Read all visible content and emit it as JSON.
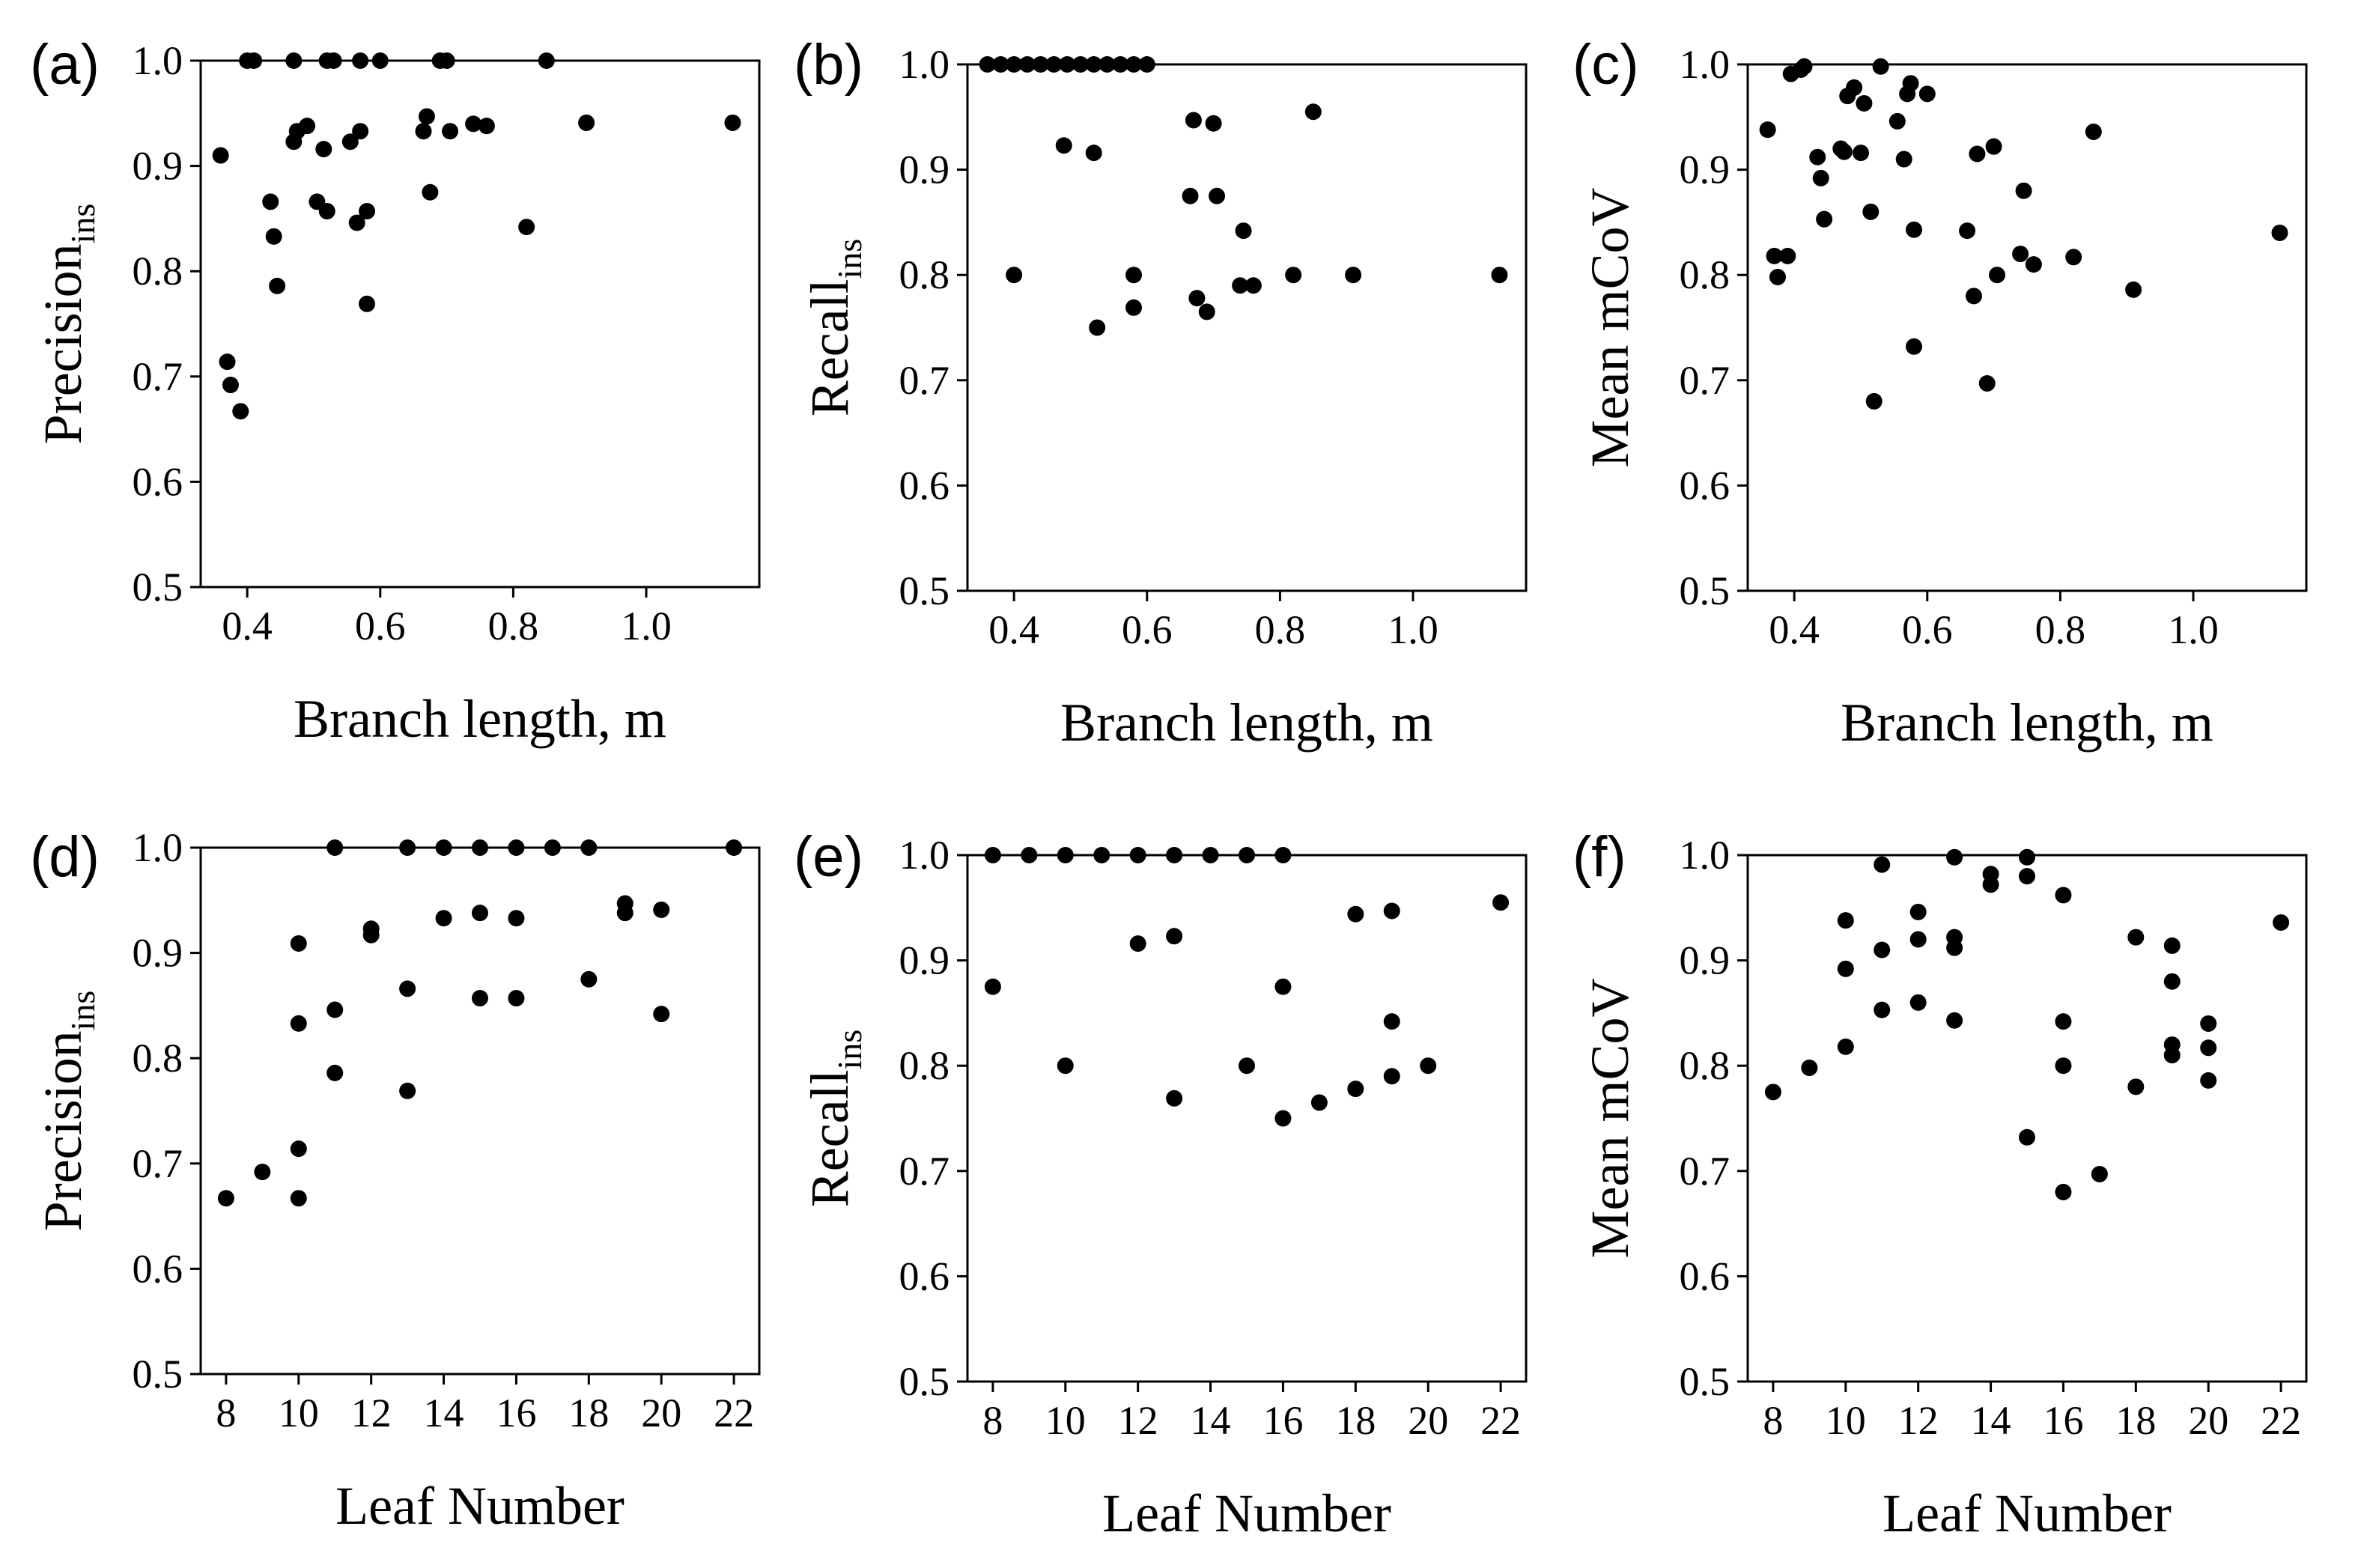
{
  "chart_data": [
    {
      "type": "scatter",
      "panel_label": "(a)",
      "xlabel": "Branch length, m",
      "ylabel": "Precision",
      "ylabel_sub": "ins",
      "xlim": [
        0.33,
        1.17
      ],
      "ylim": [
        0.5,
        1.0
      ],
      "xticks": [
        "0.4",
        "0.6",
        "0.8",
        "1.0"
      ],
      "xtick_values": [
        0.4,
        0.6,
        0.8,
        1.0
      ],
      "yticks": [
        "0.5",
        "0.6",
        "0.7",
        "0.8",
        "0.9",
        "1.0"
      ],
      "ytick_values": [
        0.5,
        0.6,
        0.7,
        0.8,
        0.9,
        1.0
      ],
      "x": [
        0.4,
        0.41,
        0.47,
        0.52,
        0.53,
        0.57,
        0.6,
        0.69,
        0.7,
        0.85,
        0.36,
        0.37,
        0.375,
        0.39,
        0.435,
        0.44,
        0.445,
        0.47,
        0.475,
        0.49,
        0.505,
        0.515,
        0.52,
        0.555,
        0.565,
        0.57,
        0.58,
        0.58,
        0.665,
        0.67,
        0.675,
        0.705,
        0.74,
        0.76,
        0.82,
        0.91,
        1.13
      ],
      "y": [
        1.0,
        1.0,
        1.0,
        1.0,
        1.0,
        1.0,
        1.0,
        1.0,
        1.0,
        1.0,
        0.91,
        0.714,
        0.692,
        0.667,
        0.866,
        0.833,
        0.786,
        0.923,
        0.933,
        0.938,
        0.866,
        0.916,
        0.857,
        0.923,
        0.846,
        0.933,
        0.857,
        0.769,
        0.933,
        0.947,
        0.875,
        0.933,
        0.94,
        0.938,
        0.842,
        0.941,
        0.941
      ]
    },
    {
      "type": "scatter",
      "panel_label": "(b)",
      "xlabel": "Branch length, m",
      "ylabel": "Recall",
      "ylabel_sub": "ins",
      "xlim": [
        0.33,
        1.17
      ],
      "ylim": [
        0.5,
        1.0
      ],
      "xticks": [
        "0.4",
        "0.6",
        "0.8",
        "1.0"
      ],
      "xtick_values": [
        0.4,
        0.6,
        0.8,
        1.0
      ],
      "yticks": [
        "0.5",
        "0.6",
        "0.7",
        "0.8",
        "0.9",
        "1.0"
      ],
      "ytick_values": [
        0.5,
        0.6,
        0.7,
        0.8,
        0.9,
        1.0
      ],
      "x": [
        0.36,
        0.38,
        0.4,
        0.42,
        0.44,
        0.46,
        0.48,
        0.5,
        0.52,
        0.54,
        0.56,
        0.58,
        0.6,
        0.4,
        0.475,
        0.52,
        0.525,
        0.58,
        0.58,
        0.665,
        0.67,
        0.675,
        0.69,
        0.7,
        0.705,
        0.74,
        0.745,
        0.76,
        0.82,
        0.85,
        0.91,
        1.13
      ],
      "y": [
        1.0,
        1.0,
        1.0,
        1.0,
        1.0,
        1.0,
        1.0,
        1.0,
        1.0,
        1.0,
        1.0,
        1.0,
        1.0,
        0.8,
        0.923,
        0.916,
        0.75,
        0.8,
        0.769,
        0.875,
        0.947,
        0.778,
        0.765,
        0.944,
        0.875,
        0.79,
        0.842,
        0.79,
        0.8,
        0.955,
        0.8,
        0.8
      ]
    },
    {
      "type": "scatter",
      "panel_label": "(c)",
      "xlabel": "Branch length, m",
      "ylabel": "Mean mCoV",
      "ylabel_sub": "",
      "xlim": [
        0.33,
        1.17
      ],
      "ylim": [
        0.5,
        1.0
      ],
      "xticks": [
        "0.4",
        "0.6",
        "0.8",
        "1.0"
      ],
      "xtick_values": [
        0.4,
        0.6,
        0.8,
        1.0
      ],
      "yticks": [
        "0.5",
        "0.6",
        "0.7",
        "0.8",
        "0.9",
        "1.0"
      ],
      "ytick_values": [
        0.5,
        0.6,
        0.7,
        0.8,
        0.9,
        1.0
      ],
      "x": [
        0.36,
        0.37,
        0.375,
        0.39,
        0.395,
        0.41,
        0.415,
        0.435,
        0.44,
        0.445,
        0.47,
        0.475,
        0.48,
        0.49,
        0.5,
        0.505,
        0.515,
        0.52,
        0.53,
        0.555,
        0.565,
        0.57,
        0.575,
        0.58,
        0.58,
        0.6,
        0.66,
        0.67,
        0.675,
        0.69,
        0.7,
        0.705,
        0.74,
        0.745,
        0.76,
        0.82,
        0.85,
        0.91,
        1.13
      ],
      "y": [
        0.938,
        0.818,
        0.798,
        0.818,
        0.991,
        0.995,
        0.998,
        0.912,
        0.892,
        0.853,
        0.92,
        0.917,
        0.97,
        0.978,
        0.916,
        0.963,
        0.86,
        0.68,
        0.998,
        0.946,
        0.91,
        0.972,
        0.982,
        0.843,
        0.732,
        0.972,
        0.842,
        0.78,
        0.915,
        0.697,
        0.922,
        0.8,
        0.82,
        0.88,
        0.81,
        0.817,
        0.936,
        0.786,
        0.84
      ]
    },
    {
      "type": "scatter",
      "panel_label": "(d)",
      "xlabel": "Leaf Number",
      "ylabel": "Precision",
      "ylabel_sub": "ins",
      "xlim": [
        7.3,
        22.7
      ],
      "ylim": [
        0.5,
        1.0
      ],
      "xticks": [
        "8",
        "10",
        "12",
        "14",
        "16",
        "18",
        "20",
        "22"
      ],
      "xtick_values": [
        8,
        10,
        12,
        14,
        16,
        18,
        20,
        22
      ],
      "yticks": [
        "0.5",
        "0.6",
        "0.7",
        "0.8",
        "0.9",
        "1.0"
      ],
      "ytick_values": [
        0.5,
        0.6,
        0.7,
        0.8,
        0.9,
        1.0
      ],
      "x": [
        8,
        9,
        10,
        10,
        10,
        10,
        11,
        11,
        11,
        12,
        12,
        13,
        13,
        13,
        14,
        14,
        15,
        15,
        15,
        16,
        16,
        16,
        17,
        18,
        18,
        19,
        19,
        20,
        20,
        22
      ],
      "y": [
        0.667,
        0.692,
        0.714,
        0.667,
        0.833,
        0.909,
        1.0,
        0.846,
        0.786,
        0.923,
        0.917,
        1.0,
        0.866,
        0.769,
        1.0,
        0.933,
        1.0,
        0.938,
        0.857,
        1.0,
        0.933,
        0.857,
        1.0,
        1.0,
        0.875,
        0.947,
        0.938,
        0.941,
        0.842,
        1.0
      ]
    },
    {
      "type": "scatter",
      "panel_label": "(e)",
      "xlabel": "Leaf Number",
      "ylabel": "Recall",
      "ylabel_sub": "ins",
      "xlim": [
        7.3,
        22.7
      ],
      "ylim": [
        0.5,
        1.0
      ],
      "xticks": [
        "8",
        "10",
        "12",
        "14",
        "16",
        "18",
        "20",
        "22"
      ],
      "xtick_values": [
        8,
        10,
        12,
        14,
        16,
        18,
        20,
        22
      ],
      "yticks": [
        "0.5",
        "0.6",
        "0.7",
        "0.8",
        "0.9",
        "1.0"
      ],
      "ytick_values": [
        0.5,
        0.6,
        0.7,
        0.8,
        0.9,
        1.0
      ],
      "x": [
        8,
        9,
        10,
        11,
        12,
        13,
        14,
        15,
        16,
        8,
        10,
        12,
        13,
        13,
        15,
        16,
        16,
        17,
        18,
        18,
        19,
        19,
        19,
        20,
        22
      ],
      "y": [
        1.0,
        1.0,
        1.0,
        1.0,
        1.0,
        1.0,
        1.0,
        1.0,
        1.0,
        0.875,
        0.8,
        0.916,
        0.923,
        0.769,
        0.8,
        0.875,
        0.75,
        0.765,
        0.944,
        0.778,
        0.947,
        0.842,
        0.79,
        0.8,
        0.955
      ]
    },
    {
      "type": "scatter",
      "panel_label": "(f)",
      "xlabel": "Leaf Number",
      "ylabel": "Mean mCoV",
      "ylabel_sub": "",
      "xlim": [
        7.3,
        22.7
      ],
      "ylim": [
        0.5,
        1.0
      ],
      "xticks": [
        "8",
        "10",
        "12",
        "14",
        "16",
        "18",
        "20",
        "22"
      ],
      "xtick_values": [
        8,
        10,
        12,
        14,
        16,
        18,
        20,
        22
      ],
      "yticks": [
        "0.5",
        "0.6",
        "0.7",
        "0.8",
        "0.9",
        "1.0"
      ],
      "ytick_values": [
        0.5,
        0.6,
        0.7,
        0.8,
        0.9,
        1.0
      ],
      "x": [
        8,
        9,
        10,
        10,
        10,
        11,
        11,
        11,
        12,
        12,
        12,
        13,
        13,
        13,
        13,
        14,
        14,
        15,
        15,
        15,
        16,
        16,
        16,
        16,
        17,
        18,
        18,
        19,
        19,
        19,
        19,
        20,
        20,
        20,
        22
      ],
      "y": [
        0.775,
        0.798,
        0.938,
        0.892,
        0.818,
        0.991,
        0.91,
        0.853,
        0.946,
        0.92,
        0.86,
        0.998,
        0.922,
        0.912,
        0.843,
        0.982,
        0.972,
        0.998,
        0.98,
        0.732,
        0.962,
        0.842,
        0.8,
        0.68,
        0.697,
        0.922,
        0.78,
        0.914,
        0.88,
        0.82,
        0.81,
        0.84,
        0.817,
        0.786,
        0.936
      ]
    }
  ]
}
